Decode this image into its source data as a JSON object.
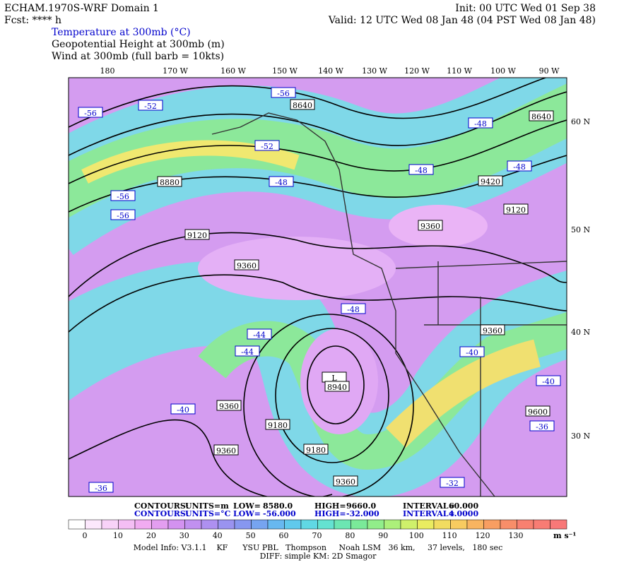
{
  "header": {
    "left": [
      "ECHAM.1970S-WRF Domain 1",
      "Fcst: **** h"
    ],
    "right": [
      "Init: 00 UTC Wed 01 Sep 38",
      "Valid: 12 UTC Wed 08 Jan 48 (04 PST Wed 08 Jan 48)"
    ],
    "fields": [
      "Temperature at 300mb (°C)",
      "Geopotential Height at 300mb (m)",
      "Wind at 300mb (full barb = 10kts)"
    ]
  },
  "map": {
    "lon_labels": [
      "180",
      "170 W",
      "160 W",
      "150 W",
      "140 W",
      "130 W",
      "120 W",
      "110 W",
      "100 W",
      "90 W"
    ],
    "lat_labels": [
      "60 N",
      "50 N",
      "40 N",
      "30 N"
    ],
    "height_labels": [
      "8640",
      "8880",
      "9120",
      "9360",
      "9360",
      "9420",
      "9120",
      "8640",
      "9360",
      "L",
      "8940",
      "9360",
      "9180",
      "9180",
      "9360",
      "9360",
      "9600"
    ],
    "temperature_labels": [
      "-56",
      "-52",
      "-56",
      "-48",
      "-52",
      "-48",
      "-56",
      "-56",
      "-48",
      "-48",
      "-48",
      "-44",
      "-44",
      "-40",
      "-40",
      "-40",
      "-36",
      "-36",
      "-32"
    ]
  },
  "contour_info": [
    [
      "CONTOURS:",
      "UNITS=m",
      "LOW=",
      "8580.0",
      "HIGH=",
      "9660.0",
      "INTERVAL=",
      "60.000"
    ],
    [
      "CONTOURS:",
      "UNITS=°C",
      "LOW=",
      "-56.000",
      "HIGH=",
      "-32.000",
      "INTERVAL=",
      "4.0000"
    ]
  ],
  "colorbar": {
    "ticks": [
      0,
      10,
      20,
      30,
      40,
      50,
      60,
      70,
      80,
      90,
      100,
      110,
      120,
      130
    ],
    "unit": "m s⁻¹"
  },
  "footer": [
    "Model Info: V3.1.1    KF      YSU PBL   Thompson     Noah LSM   36 km,     37 levels,   180 sec",
    "DIFF: simple KM: 2D Smagor"
  ]
}
